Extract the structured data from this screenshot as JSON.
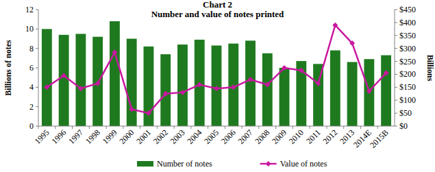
{
  "chart_data": {
    "type": "bar",
    "title": "Chart 2",
    "subtitle": "Number and value of notes printed",
    "y_label": "Billions of notes",
    "y2_label": "Billions",
    "categories": [
      "1995",
      "1996",
      "1997",
      "1998",
      "1999",
      "2000",
      "2001",
      "2002",
      "2003",
      "2004",
      "2005",
      "2006",
      "2007",
      "2008",
      "2009",
      "2010",
      "2011",
      "2012",
      "2013",
      "2014E",
      "2015B"
    ],
    "series": [
      {
        "name": "Number of notes",
        "type": "bar",
        "color": "#1f7a1f",
        "values": [
          10.0,
          9.4,
          9.5,
          9.2,
          10.8,
          9.0,
          8.2,
          7.4,
          8.4,
          8.9,
          8.3,
          8.5,
          8.8,
          7.5,
          6.0,
          6.7,
          6.4,
          7.8,
          6.6,
          6.9,
          7.3
        ]
      },
      {
        "name": "Value of notes",
        "type": "line",
        "axis": "y2",
        "color": "#c8189f",
        "marker": "diamond",
        "values": [
          150,
          195,
          145,
          165,
          285,
          65,
          50,
          125,
          130,
          160,
          145,
          150,
          180,
          160,
          225,
          215,
          165,
          390,
          320,
          135,
          205
        ]
      }
    ],
    "ylim": [
      0,
      12
    ],
    "yticks": [
      0,
      2,
      4,
      6,
      8,
      10,
      12
    ],
    "y2lim": [
      0,
      450
    ],
    "y2ticks": [
      {
        "value": 0,
        "label": "$0"
      },
      {
        "value": 50,
        "label": "$50"
      },
      {
        "value": 100,
        "label": "$100"
      },
      {
        "value": 150,
        "label": "$150"
      },
      {
        "value": 200,
        "label": "$200"
      },
      {
        "value": 250,
        "label": "$250"
      },
      {
        "value": 300,
        "label": "$300"
      },
      {
        "value": 350,
        "label": "$350"
      },
      {
        "value": 400,
        "label": "$400"
      },
      {
        "value": 450,
        "label": "$450"
      }
    ],
    "legend": "bottom",
    "grid": false
  }
}
